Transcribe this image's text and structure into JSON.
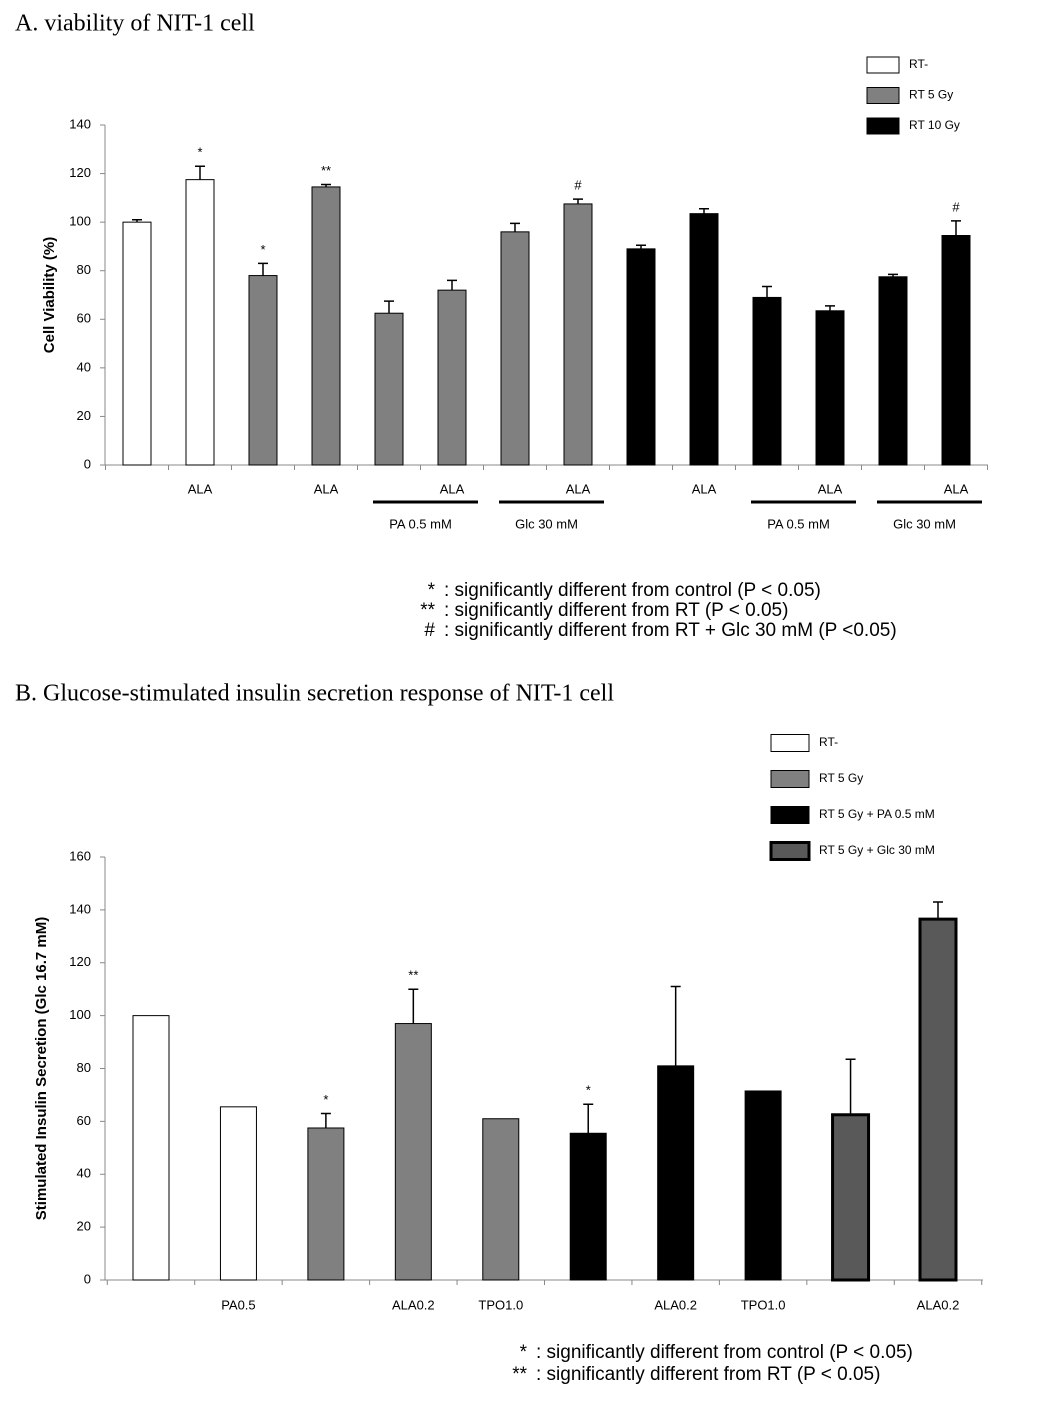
{
  "chart_data": [
    {
      "type": "bar",
      "title": "A. viability of NIT-1 cell",
      "y_label": "Cell Viability (%)",
      "categories": [
        null,
        "ALA",
        null,
        "ALA",
        null,
        "ALA",
        null,
        "ALA",
        null,
        "ALA",
        null,
        "ALA",
        null,
        "ALA"
      ],
      "group_labels": [
        null,
        null,
        null,
        null,
        "PA 0.5 mM",
        "PA 0.5 mM",
        "Glc 30 mM",
        "Glc 30 mM",
        null,
        null,
        "PA 0.5 mM",
        "PA 0.5 mM",
        "Glc 30 mM",
        "Glc 30 mM"
      ],
      "series": [
        {
          "name": "RT-",
          "color": "#ffffff",
          "values": [
            100,
            117.5,
            null,
            null,
            null,
            null,
            null,
            null,
            null,
            null,
            null,
            null,
            null,
            null
          ],
          "errors": [
            1,
            5.5,
            null,
            null,
            null,
            null,
            null,
            null,
            null,
            null,
            null,
            null,
            null,
            null
          ],
          "markers": [
            null,
            "*",
            null,
            null,
            null,
            null,
            null,
            null,
            null,
            null,
            null,
            null,
            null,
            null
          ]
        },
        {
          "name": "RT 5 Gy",
          "color": "#808080",
          "values": [
            null,
            null,
            78,
            114.5,
            62.5,
            72,
            96,
            107.5,
            null,
            null,
            null,
            null,
            null,
            null
          ],
          "errors": [
            null,
            null,
            5,
            1,
            5,
            4,
            3.5,
            2,
            null,
            null,
            null,
            null,
            null,
            null
          ],
          "markers": [
            null,
            null,
            "*",
            "**",
            null,
            null,
            null,
            "#",
            null,
            null,
            null,
            null,
            null,
            null
          ]
        },
        {
          "name": "RT 10 Gy",
          "color": "#000000",
          "values": [
            null,
            null,
            null,
            null,
            null,
            null,
            null,
            null,
            89,
            103.5,
            69,
            63.5,
            77.5,
            94.5
          ],
          "errors": [
            null,
            null,
            null,
            null,
            null,
            null,
            null,
            null,
            1.5,
            2,
            4.5,
            2,
            1,
            6
          ],
          "markers": [
            null,
            null,
            null,
            null,
            null,
            null,
            null,
            null,
            null,
            null,
            null,
            null,
            null,
            "#"
          ]
        }
      ],
      "ylim": [
        0,
        140
      ],
      "yticks": [
        0,
        20,
        40,
        60,
        80,
        100,
        120,
        140
      ],
      "notes": [
        {
          "symbol": "*",
          "text": ": significantly different from control (P < 0.05)"
        },
        {
          "symbol": "**",
          "text": ": significantly different from RT (P < 0.05)"
        },
        {
          "symbol": "#",
          "text": ": significantly different from RT + Glc 30 mM (P <0.05)"
        }
      ]
    },
    {
      "type": "bar",
      "title": "B. Glucose-stimulated insulin secretion response of NIT-1 cell",
      "y_label": "Stimulated Insulin Secretion (Glc 16.7 mM)",
      "categories": [
        null,
        "PA0.5",
        null,
        "ALA0.2",
        "TPO1.0",
        null,
        "ALA0.2",
        "TPO1.0",
        null,
        "ALA0.2"
      ],
      "series": [
        {
          "name": "RT-",
          "color": "#ffffff",
          "values": [
            100,
            65.5,
            null,
            null,
            null,
            null,
            null,
            null,
            null,
            null
          ],
          "errors": [
            null,
            null,
            null,
            null,
            null,
            null,
            null,
            null,
            null,
            null
          ],
          "markers": [
            null,
            null,
            null,
            null,
            null,
            null,
            null,
            null,
            null,
            null
          ]
        },
        {
          "name": "RT 5 Gy",
          "color": "#808080",
          "values": [
            null,
            null,
            57.5,
            97,
            61,
            null,
            null,
            null,
            null,
            null
          ],
          "errors": [
            null,
            null,
            5.5,
            13,
            null,
            null,
            null,
            null,
            null,
            null
          ],
          "markers": [
            null,
            null,
            "*",
            "**",
            null,
            null,
            null,
            null,
            null,
            null
          ]
        },
        {
          "name": "RT 5 Gy + PA 0.5 mM",
          "color": "#000000",
          "values": [
            null,
            null,
            null,
            null,
            null,
            55.5,
            81,
            71.5,
            null,
            null
          ],
          "errors": [
            null,
            null,
            null,
            null,
            null,
            11,
            30,
            null,
            null,
            null
          ],
          "markers": [
            null,
            null,
            null,
            null,
            null,
            "*",
            null,
            null,
            null,
            null
          ]
        },
        {
          "name": "RT 5 Gy + Glc 30 mM",
          "color": "#595959",
          "border_width": 3,
          "values": [
            null,
            null,
            null,
            null,
            null,
            null,
            null,
            null,
            62.5,
            136.5
          ],
          "errors": [
            null,
            null,
            null,
            null,
            null,
            null,
            null,
            null,
            21,
            6.5
          ],
          "markers": [
            null,
            null,
            null,
            null,
            null,
            null,
            null,
            null,
            null,
            null
          ]
        }
      ],
      "ylim": [
        0,
        160
      ],
      "yticks": [
        0,
        20,
        40,
        60,
        80,
        100,
        120,
        140,
        160
      ],
      "notes": [
        {
          "symbol": "*",
          "text": ": significantly different from control (P < 0.05)"
        },
        {
          "symbol": "**",
          "text": ": significantly different from RT (P < 0.05)"
        }
      ]
    }
  ]
}
